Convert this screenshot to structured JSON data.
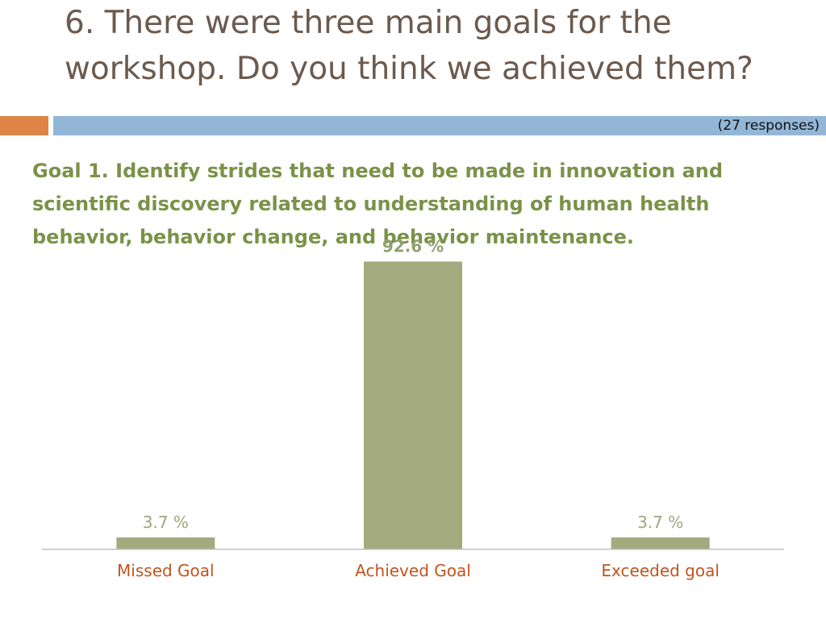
{
  "slide": {
    "title": "6. There were three main goals for the workshop. Do you think we achieved them?",
    "responses": "(27 responses)",
    "goal_text": "Goal 1. Identify strides that need to be made in innovation and scientific discovery related to understanding of human health behavior, behavior change, and behavior maintenance."
  },
  "colors": {
    "bar": "#a3aa7e",
    "data_label_bold": "#8fa070",
    "data_label": "#9aa87c",
    "category_label": "#c0541e",
    "axis": "#bfbfbf"
  },
  "chart_data": {
    "type": "bar",
    "categories": [
      "Missed Goal",
      "Achieved Goal",
      "Exceeded goal"
    ],
    "values": [
      3.7,
      92.6,
      3.7
    ],
    "data_labels": [
      "3.7 %",
      "92.6 %",
      "3.7 %"
    ],
    "title": "",
    "xlabel": "",
    "ylabel": "",
    "ylim": [
      0,
      100
    ],
    "grid": false,
    "legend": "none"
  }
}
